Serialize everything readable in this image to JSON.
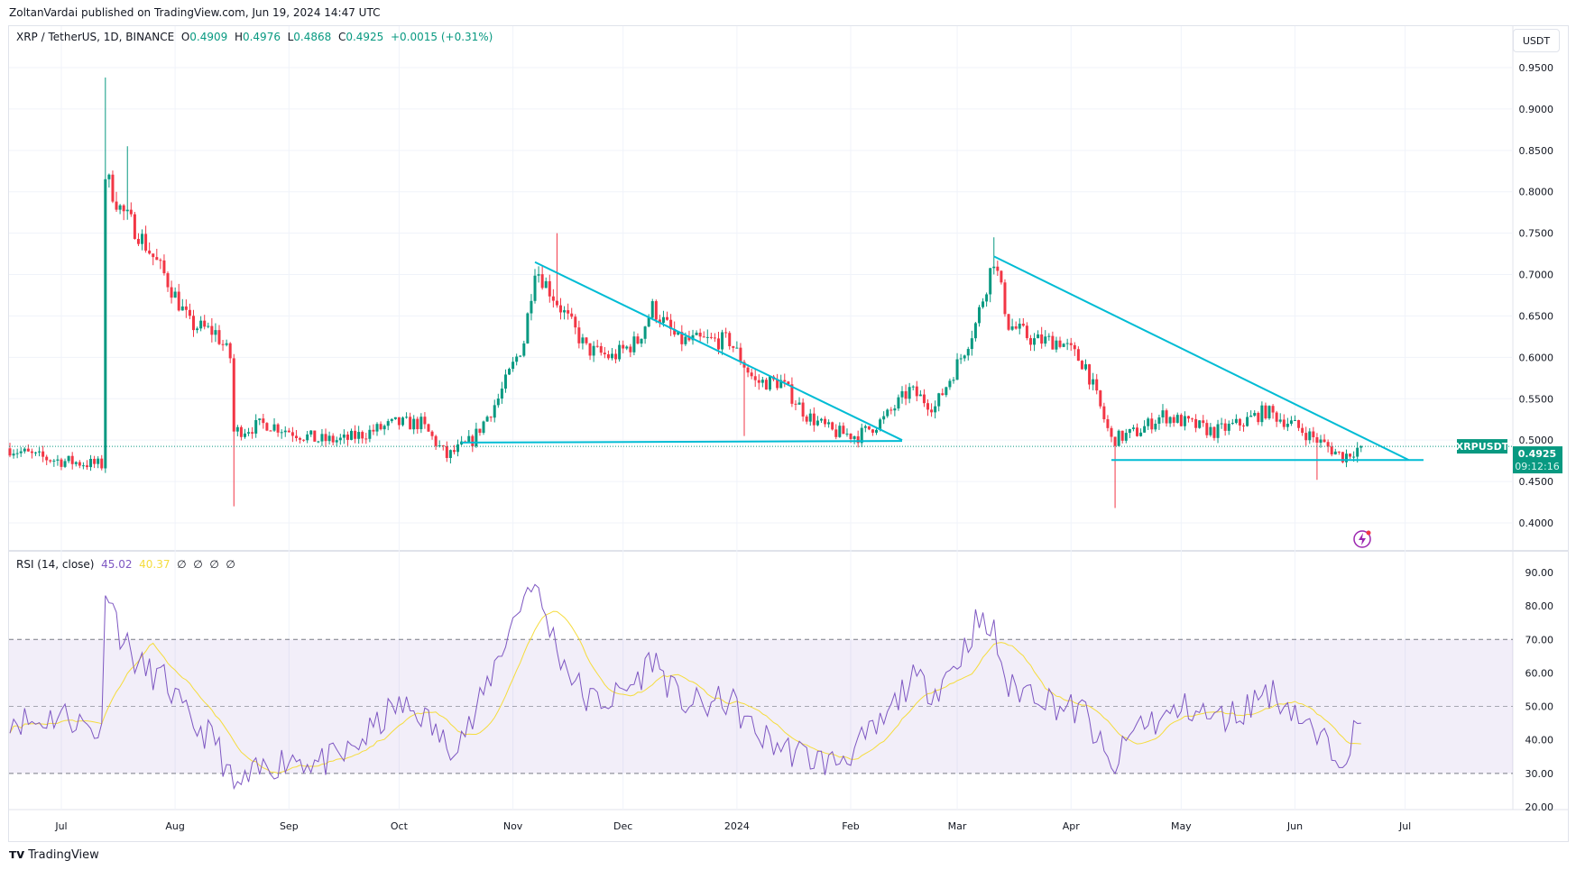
{
  "publisher_line": "ZoltanVardai published on TradingView.com, Jun 19, 2024 14:47 UTC",
  "legend": {
    "symbol": "XRP / TetherUS, 1D, BINANCE",
    "o_label": "O",
    "o": "0.4909",
    "h_label": "H",
    "h": "0.4976",
    "l_label": "L",
    "l": "0.4868",
    "c_label": "C",
    "c": "0.4925",
    "change": "+0.0015 (+0.31%)"
  },
  "currency_button": "USDT",
  "price_tag": {
    "symbol": "XRPUSDT",
    "price": "0.4925",
    "countdown": "09:12:16"
  },
  "rsi_legend": {
    "label": "RSI (14, close)",
    "rsi": "45.02",
    "ma": "40.37",
    "extras": [
      "∅",
      "∅",
      "∅",
      "∅"
    ]
  },
  "footer": {
    "logo_text": "TradingView"
  },
  "colors": {
    "up": "#089981",
    "down": "#f23645",
    "trendline": "#00bcd4",
    "rsi": "#7e57c2",
    "rsi_ma": "#f5dc3c"
  },
  "chart_data": [
    {
      "type": "candlestick",
      "title": "XRP / TetherUS, 1D, BINANCE",
      "ylim": [
        0.38,
        0.98
      ],
      "y_ticks": [
        "0.9500",
        "0.9000",
        "0.8500",
        "0.8000",
        "0.7500",
        "0.7000",
        "0.6500",
        "0.6000",
        "0.5500",
        "0.5000",
        "0.4500",
        "0.4000"
      ],
      "x_ticks": [
        [
          "2023-07-01",
          "Jul"
        ],
        [
          "2023-08-01",
          "Aug"
        ],
        [
          "2023-09-01",
          "Sep"
        ],
        [
          "2023-10-01",
          "Oct"
        ],
        [
          "2023-11-01",
          "Nov"
        ],
        [
          "2023-12-01",
          "Dec"
        ],
        [
          "2024-01-01",
          "2024"
        ],
        [
          "2024-02-01",
          "Feb"
        ],
        [
          "2024-03-01",
          "Mar"
        ],
        [
          "2024-04-01",
          "Apr"
        ],
        [
          "2024-05-01",
          "May"
        ],
        [
          "2024-06-01",
          "Jun"
        ],
        [
          "2024-07-01",
          "Jul"
        ]
      ],
      "approx_closes": [
        [
          "2023-06-17",
          0.49
        ],
        [
          "2023-06-24",
          0.48
        ],
        [
          "2023-07-01",
          0.475
        ],
        [
          "2023-07-12",
          0.47
        ],
        [
          "2023-07-13",
          0.82
        ],
        [
          "2023-07-17",
          0.78
        ],
        [
          "2023-07-22",
          0.75
        ],
        [
          "2023-07-29",
          0.7
        ],
        [
          "2023-08-05",
          0.64
        ],
        [
          "2023-08-12",
          0.63
        ],
        [
          "2023-08-16",
          0.6
        ],
        [
          "2023-08-17",
          0.51
        ],
        [
          "2023-08-26",
          0.52
        ],
        [
          "2023-09-02",
          0.51
        ],
        [
          "2023-09-09",
          0.5
        ],
        [
          "2023-09-16",
          0.5
        ],
        [
          "2023-09-23",
          0.51
        ],
        [
          "2023-09-30",
          0.52
        ],
        [
          "2023-10-07",
          0.52
        ],
        [
          "2023-10-14",
          0.48
        ],
        [
          "2023-10-21",
          0.5
        ],
        [
          "2023-10-28",
          0.55
        ],
        [
          "2023-11-04",
          0.62
        ],
        [
          "2023-11-07",
          0.71
        ],
        [
          "2023-11-14",
          0.66
        ],
        [
          "2023-11-21",
          0.61
        ],
        [
          "2023-11-28",
          0.6
        ],
        [
          "2023-12-05",
          0.62
        ],
        [
          "2023-12-09",
          0.66
        ],
        [
          "2023-12-16",
          0.62
        ],
        [
          "2023-12-23",
          0.62
        ],
        [
          "2023-12-30",
          0.62
        ],
        [
          "2024-01-06",
          0.57
        ],
        [
          "2024-01-13",
          0.57
        ],
        [
          "2024-01-20",
          0.53
        ],
        [
          "2024-01-27",
          0.51
        ],
        [
          "2024-02-03",
          0.505
        ],
        [
          "2024-02-10",
          0.525
        ],
        [
          "2024-02-17",
          0.56
        ],
        [
          "2024-02-24",
          0.54
        ],
        [
          "2024-03-02",
          0.6
        ],
        [
          "2024-03-06",
          0.64
        ],
        [
          "2024-03-11",
          0.72
        ],
        [
          "2024-03-15",
          0.64
        ],
        [
          "2024-03-22",
          0.62
        ],
        [
          "2024-03-29",
          0.62
        ],
        [
          "2024-04-05",
          0.59
        ],
        [
          "2024-04-12",
          0.5
        ],
        [
          "2024-04-19",
          0.51
        ],
        [
          "2024-04-26",
          0.53
        ],
        [
          "2024-05-03",
          0.52
        ],
        [
          "2024-05-10",
          0.51
        ],
        [
          "2024-05-17",
          0.52
        ],
        [
          "2024-05-24",
          0.535
        ],
        [
          "2024-05-31",
          0.52
        ],
        [
          "2024-06-07",
          0.5
        ],
        [
          "2024-06-14",
          0.48
        ],
        [
          "2024-06-19",
          0.4925
        ]
      ],
      "extremes": [
        [
          "2023-07-13",
          "high",
          0.938
        ],
        [
          "2023-07-19",
          "high",
          0.855
        ],
        [
          "2023-08-17",
          "low",
          0.42
        ],
        [
          "2023-11-13",
          "high",
          0.75
        ],
        [
          "2024-01-03",
          "low",
          0.505
        ],
        [
          "2024-03-11",
          "high",
          0.745
        ],
        [
          "2024-04-13",
          "low",
          0.418
        ],
        [
          "2024-06-07",
          "low",
          0.452
        ]
      ],
      "trendlines": [
        [
          [
            "2023-11-07",
            0.715
          ],
          [
            "2024-02-15",
            0.5
          ]
        ],
        [
          [
            "2023-10-18",
            0.497
          ],
          [
            "2024-02-15",
            0.499
          ]
        ],
        [
          [
            "2024-03-11",
            0.722
          ],
          [
            "2024-07-02",
            0.476
          ]
        ],
        [
          [
            "2024-04-12",
            0.476
          ],
          [
            "2024-07-06",
            0.476
          ]
        ]
      ],
      "last_price": 0.4925
    },
    {
      "type": "line",
      "title": "RSI (14, close)",
      "ylim": [
        15,
        95
      ],
      "y_ticks": [
        "90.00",
        "80.00",
        "70.00",
        "60.00",
        "50.00",
        "40.00",
        "30.00",
        "20.00"
      ],
      "bands": [
        30,
        50,
        70
      ],
      "approx_rsi": [
        [
          "2023-06-17",
          47
        ],
        [
          "2023-06-24",
          45
        ],
        [
          "2023-07-01",
          48
        ],
        [
          "2023-07-12",
          42
        ],
        [
          "2023-07-13",
          88
        ],
        [
          "2023-07-17",
          72
        ],
        [
          "2023-07-22",
          62
        ],
        [
          "2023-07-29",
          58
        ],
        [
          "2023-08-05",
          45
        ],
        [
          "2023-08-12",
          40
        ],
        [
          "2023-08-17",
          25
        ],
        [
          "2023-08-26",
          32
        ],
        [
          "2023-09-02",
          35
        ],
        [
          "2023-09-09",
          33
        ],
        [
          "2023-09-16",
          35
        ],
        [
          "2023-09-23",
          42
        ],
        [
          "2023-09-30",
          50
        ],
        [
          "2023-10-07",
          48
        ],
        [
          "2023-10-14",
          38
        ],
        [
          "2023-10-21",
          45
        ],
        [
          "2023-10-28",
          65
        ],
        [
          "2023-11-06",
          88
        ],
        [
          "2023-11-14",
          65
        ],
        [
          "2023-11-21",
          52
        ],
        [
          "2023-11-28",
          52
        ],
        [
          "2023-12-05",
          58
        ],
        [
          "2023-12-09",
          65
        ],
        [
          "2023-12-16",
          52
        ],
        [
          "2023-12-23",
          50
        ],
        [
          "2023-12-30",
          52
        ],
        [
          "2024-01-06",
          42
        ],
        [
          "2024-01-13",
          38
        ],
        [
          "2024-01-20",
          35
        ],
        [
          "2024-01-27",
          33
        ],
        [
          "2024-02-03",
          38
        ],
        [
          "2024-02-10",
          45
        ],
        [
          "2024-02-17",
          58
        ],
        [
          "2024-02-24",
          55
        ],
        [
          "2024-03-02",
          65
        ],
        [
          "2024-03-06",
          75
        ],
        [
          "2024-03-11",
          72
        ],
        [
          "2024-03-15",
          55
        ],
        [
          "2024-03-22",
          55
        ],
        [
          "2024-03-29",
          50
        ],
        [
          "2024-04-05",
          48
        ],
        [
          "2024-04-12",
          30
        ],
        [
          "2024-04-19",
          45
        ],
        [
          "2024-04-26",
          46
        ],
        [
          "2024-05-03",
          50
        ],
        [
          "2024-05-10",
          46
        ],
        [
          "2024-05-17",
          48
        ],
        [
          "2024-05-24",
          55
        ],
        [
          "2024-05-31",
          50
        ],
        [
          "2024-06-07",
          40
        ],
        [
          "2024-06-14",
          36
        ],
        [
          "2024-06-19",
          45
        ]
      ]
    }
  ]
}
